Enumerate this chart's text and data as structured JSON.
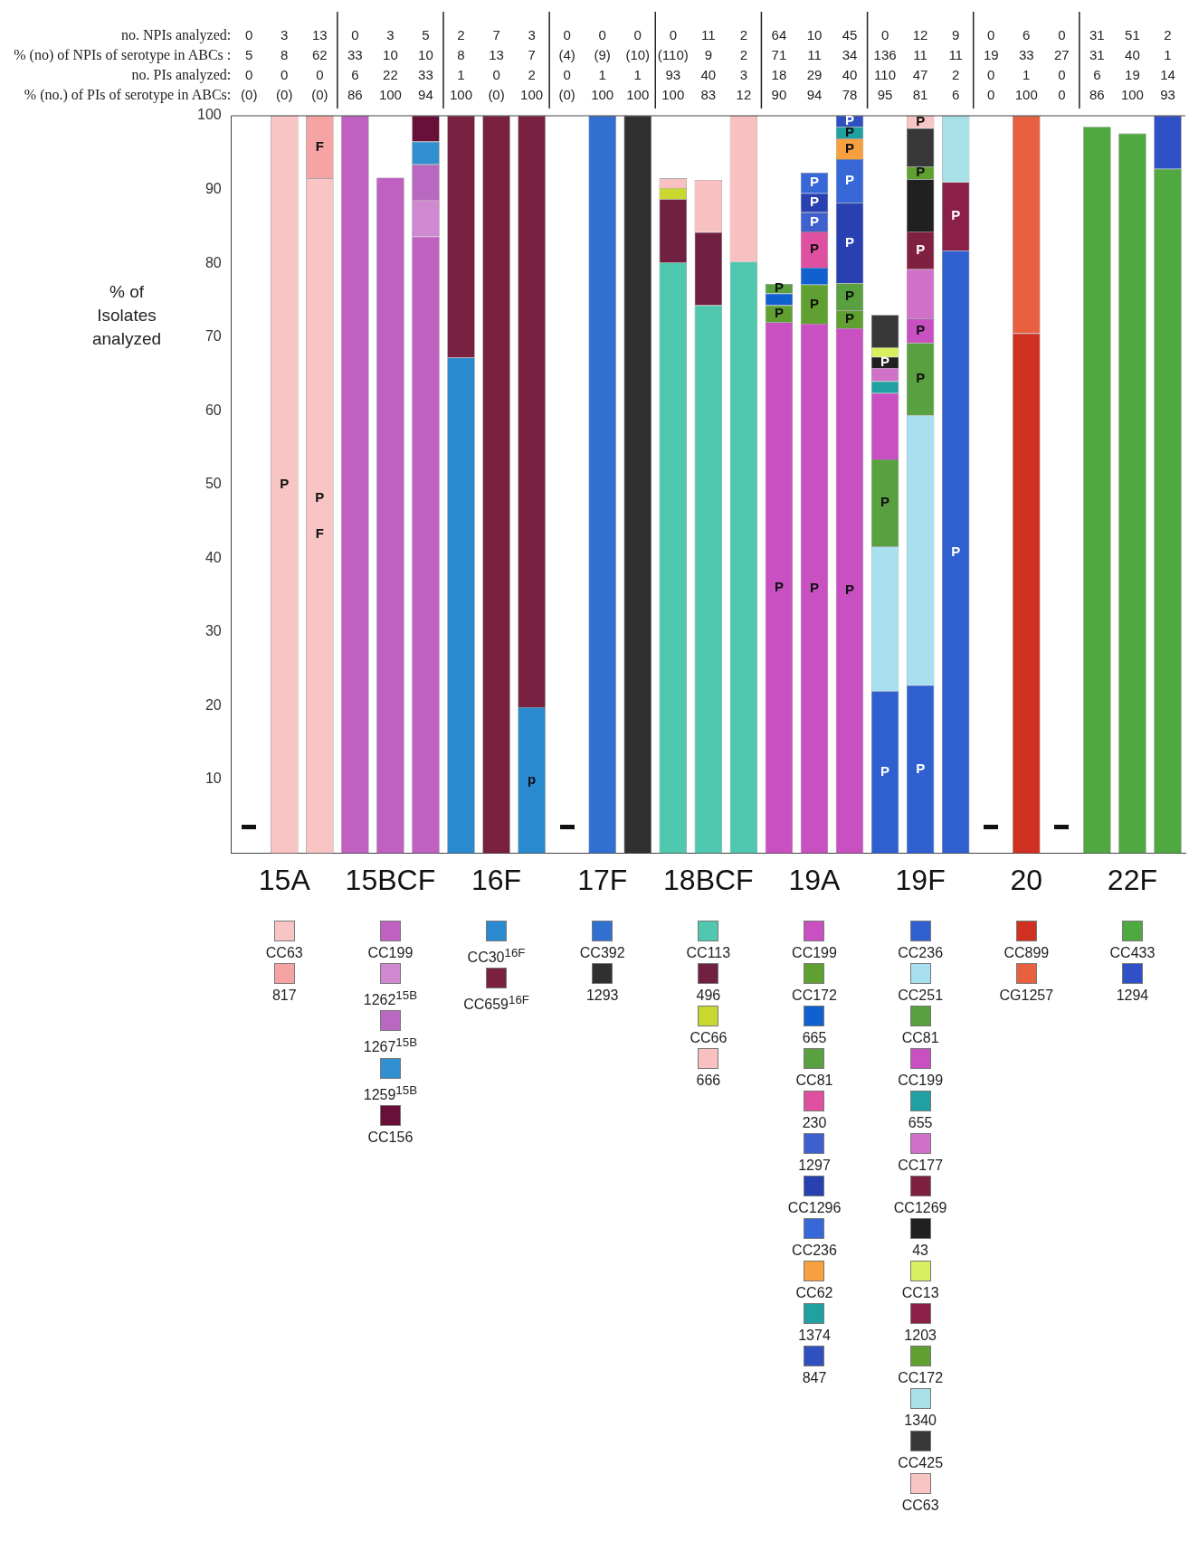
{
  "chart_data": {
    "type": "bar",
    "stacked": true,
    "ylabel": "% of Isolates analyzed",
    "categories": [
      null,
      "15A",
      null,
      null,
      "15BCF",
      null,
      null,
      "16F",
      null,
      null,
      "17F",
      null,
      null,
      "18BCF",
      null,
      null,
      "19A",
      null,
      null,
      "19F",
      null,
      null,
      "20",
      null,
      null,
      "22F",
      null
    ],
    "ylim": [
      0,
      100
    ],
    "yticks": [
      10,
      20,
      30,
      40,
      50,
      60,
      70,
      80,
      90,
      100
    ],
    "grid": false,
    "legend": "bottom",
    "annotations": [
      "no. NPIs analyzed:",
      "% (no) of NPIs of serotype in ABCs :",
      "no. PIs analyzed:",
      "% (no.) of PIs of serotype in ABCs:",
      "0 3 13 0 3 5 2 7 3 0 0 0 0 11 2 64 10 45 0 12 9 0 6 0 31 51 2",
      "5 8 62 33 10 10 8 13 7 (4) (9) (10) (110) 9 2 71 11 34 136 11 11 19 33 27 31 40 1",
      "0 0 0 6 22 33 1 0 2 0 1 1 93 40 3 18 29 40 110 47 2 0 1 0 6 19 14",
      "(0) (0) (0) 86 100 94 100 (0) 100 (0) 100 100 100 83 12 90 94 78 95 81 6 0 100 0 86 100 93"
    ],
    "series": [
      {
        "name": "CC63",
        "color": "#f9c4c4",
        "values": [
          null,
          100,
          91.5,
          null,
          null,
          null,
          null,
          null,
          null,
          null,
          null,
          null,
          null,
          null,
          null,
          null,
          null,
          null,
          null,
          null,
          null,
          null,
          null,
          null,
          null,
          null,
          null
        ],
        "value_labels": [
          null,
          "P",
          "P\nF",
          null,
          null,
          null,
          null,
          null,
          null,
          null,
          null,
          null,
          null,
          null,
          null,
          null,
          null,
          null,
          null,
          null,
          null,
          null,
          null,
          null,
          null,
          null,
          null
        ]
      },
      {
        "name": "817",
        "color": "#f5a3a3",
        "values": [
          null,
          null,
          8.5,
          null,
          null,
          null,
          null,
          null,
          null,
          null,
          null,
          null,
          null,
          null,
          null,
          null,
          null,
          null,
          null,
          null,
          null,
          null,
          null,
          null,
          null,
          null,
          null
        ],
        "value_labels": [
          null,
          null,
          "F",
          null,
          null,
          null,
          null,
          null,
          null,
          null,
          null,
          null,
          null,
          null,
          null,
          null,
          null,
          null,
          null,
          null,
          null,
          null,
          null,
          null,
          null,
          null,
          null
        ]
      },
      {
        "name": "CC199",
        "color": "#c060c0",
        "values": [
          null,
          null,
          null,
          100,
          91.6,
          83.6,
          null,
          null,
          null,
          null,
          null,
          null,
          null,
          null,
          null,
          null,
          null,
          null,
          null,
          null,
          null,
          null,
          null,
          null,
          null,
          null,
          null
        ]
      },
      {
        "name": "1262$^{15B}$",
        "color": "#d088d0",
        "values": [
          null,
          null,
          null,
          null,
          null,
          5.0,
          null,
          null,
          null,
          null,
          null,
          null,
          null,
          null,
          null,
          null,
          null,
          null,
          null,
          null,
          null,
          null,
          null,
          null,
          null,
          null,
          null
        ]
      },
      {
        "name": "1267$^{15B}$",
        "color": "#b868c0",
        "values": [
          null,
          null,
          null,
          null,
          null,
          4.8,
          null,
          null,
          null,
          null,
          null,
          null,
          null,
          null,
          null,
          null,
          null,
          null,
          null,
          null,
          null,
          null,
          null,
          null,
          null,
          null,
          null
        ]
      },
      {
        "name": "1259$^{15B}$",
        "color": "#3090d0",
        "values": [
          null,
          null,
          null,
          null,
          null,
          3.1,
          null,
          null,
          null,
          null,
          null,
          null,
          null,
          null,
          null,
          null,
          null,
          null,
          null,
          null,
          null,
          null,
          null,
          null,
          null,
          null,
          null
        ]
      },
      {
        "name": "CC156",
        "color": "#6a0f3a",
        "values": [
          null,
          null,
          null,
          null,
          null,
          3.5,
          null,
          null,
          null,
          null,
          null,
          null,
          null,
          null,
          null,
          null,
          null,
          null,
          null,
          null,
          null,
          null,
          null,
          null,
          null,
          null,
          null
        ]
      },
      {
        "name": "CC30$^{16F}$",
        "color": "#2a8ad0",
        "values": [
          null,
          null,
          null,
          null,
          null,
          null,
          67.2,
          null,
          19.8,
          null,
          null,
          null,
          null,
          null,
          null,
          null,
          null,
          null,
          null,
          null,
          null,
          null,
          null,
          null,
          null,
          null,
          null
        ],
        "value_labels": [
          null,
          null,
          null,
          null,
          null,
          null,
          null,
          null,
          "p",
          null,
          null,
          null,
          null,
          null,
          null,
          null,
          null,
          null,
          null,
          null,
          null,
          null,
          null,
          null,
          null,
          null,
          null
        ]
      },
      {
        "name": "CC659$^{16F}$",
        "color": "#7a2040",
        "values": [
          null,
          null,
          null,
          null,
          null,
          null,
          32.8,
          100,
          80.2,
          null,
          null,
          null,
          null,
          null,
          null,
          null,
          null,
          null,
          null,
          null,
          null,
          null,
          null,
          null,
          null,
          null,
          null
        ]
      },
      {
        "name": "CC392",
        "color": "#3070d0",
        "values": [
          null,
          null,
          null,
          null,
          null,
          null,
          null,
          null,
          null,
          null,
          100,
          null,
          null,
          null,
          null,
          null,
          null,
          null,
          null,
          null,
          null,
          null,
          null,
          null,
          null,
          null,
          null
        ]
      },
      {
        "name": "1293",
        "color": "#303030",
        "values": [
          null,
          null,
          null,
          null,
          null,
          null,
          null,
          null,
          null,
          null,
          null,
          100,
          null,
          null,
          null,
          null,
          null,
          null,
          null,
          null,
          null,
          null,
          null,
          null,
          null,
          null,
          null
        ]
      },
      {
        "name": "CC113",
        "color": "#50c8b0",
        "values": [
          null,
          null,
          null,
          null,
          null,
          null,
          null,
          null,
          null,
          null,
          null,
          null,
          80.1,
          74.3,
          80.2,
          null,
          null,
          null,
          null,
          null,
          null,
          null,
          null,
          null,
          null,
          null,
          null
        ]
      },
      {
        "name": "496",
        "color": "#702040",
        "values": [
          null,
          null,
          null,
          null,
          null,
          null,
          null,
          null,
          null,
          null,
          null,
          null,
          8.6,
          9.9,
          null,
          null,
          null,
          null,
          null,
          null,
          null,
          null,
          null,
          null,
          null,
          null,
          null
        ]
      },
      {
        "name": "CC66",
        "color": "#c8d830",
        "values": [
          null,
          null,
          null,
          null,
          null,
          null,
          null,
          null,
          null,
          null,
          null,
          null,
          1.5,
          null,
          null,
          null,
          null,
          null,
          null,
          null,
          null,
          null,
          null,
          null,
          null,
          null,
          null
        ]
      },
      {
        "name": "666",
        "color": "#f8c0c0",
        "values": [
          null,
          null,
          null,
          null,
          null,
          null,
          null,
          null,
          null,
          null,
          null,
          null,
          1.3,
          7.1,
          19.8,
          null,
          null,
          null,
          null,
          null,
          null,
          null,
          null,
          null,
          null,
          null,
          null
        ]
      },
      {
        "name": "CC199",
        "color": "#c850c0",
        "values": [
          null,
          null,
          null,
          null,
          null,
          null,
          null,
          null,
          null,
          null,
          null,
          null,
          null,
          null,
          null,
          72.0,
          71.8,
          71.2,
          null,
          null,
          null,
          null,
          null,
          null,
          null,
          null,
          null
        ],
        "value_labels": [
          null,
          null,
          null,
          null,
          null,
          null,
          null,
          null,
          null,
          null,
          null,
          null,
          null,
          null,
          null,
          "P",
          "P",
          "P",
          null,
          null,
          null,
          null,
          null,
          null,
          null,
          null,
          null
        ]
      },
      {
        "name": "CC172",
        "color": "#60a030",
        "values": [
          null,
          null,
          null,
          null,
          null,
          null,
          null,
          null,
          null,
          null,
          null,
          null,
          null,
          null,
          null,
          2.3,
          5.3,
          2.4,
          null,
          null,
          null,
          null,
          null,
          null,
          null,
          null,
          null
        ],
        "value_labels": [
          null,
          null,
          null,
          null,
          null,
          null,
          null,
          null,
          null,
          null,
          null,
          null,
          null,
          null,
          null,
          "P",
          "P",
          "P",
          null,
          null,
          null,
          null,
          null,
          null,
          null,
          null,
          null
        ]
      },
      {
        "name": "665",
        "color": "#1060d0",
        "values": [
          null,
          null,
          null,
          null,
          null,
          null,
          null,
          null,
          null,
          null,
          null,
          null,
          null,
          null,
          null,
          1.6,
          2.3,
          null,
          null,
          null,
          null,
          null,
          null,
          null,
          null,
          null,
          null
        ]
      },
      {
        "name": "CC81",
        "color": "#58a040",
        "values": [
          null,
          null,
          null,
          null,
          null,
          null,
          null,
          null,
          null,
          null,
          null,
          null,
          null,
          null,
          null,
          1.3,
          null,
          3.7,
          null,
          null,
          null,
          null,
          null,
          null,
          null,
          null,
          null
        ],
        "value_labels": [
          null,
          null,
          null,
          null,
          null,
          null,
          null,
          null,
          null,
          null,
          null,
          null,
          null,
          null,
          null,
          "P",
          null,
          "P",
          null,
          null,
          null,
          null,
          null,
          null,
          null,
          null,
          null
        ]
      },
      {
        "name": "230",
        "color": "#e050a0",
        "values": [
          null,
          null,
          null,
          null,
          null,
          null,
          null,
          null,
          null,
          null,
          null,
          null,
          null,
          null,
          null,
          null,
          4.9,
          null,
          null,
          null,
          null,
          null,
          null,
          null,
          null,
          null,
          null
        ],
        "value_labels": [
          null,
          null,
          null,
          null,
          null,
          null,
          null,
          null,
          null,
          null,
          null,
          null,
          null,
          null,
          null,
          null,
          "P",
          null,
          null,
          null,
          null,
          null,
          null,
          null,
          null,
          null,
          null
        ]
      },
      {
        "name": "1297",
        "color": "#4060d0",
        "values": [
          null,
          null,
          null,
          null,
          null,
          null,
          null,
          null,
          null,
          null,
          null,
          null,
          null,
          null,
          null,
          null,
          2.6,
          null,
          null,
          null,
          null,
          null,
          null,
          null,
          null,
          null,
          null
        ],
        "value_labels": [
          null,
          null,
          null,
          null,
          null,
          null,
          null,
          null,
          null,
          null,
          null,
          null,
          null,
          null,
          null,
          null,
          "P",
          null,
          null,
          null,
          null,
          null,
          null,
          null,
          null,
          null,
          null
        ]
      },
      {
        "name": "CC1296",
        "color": "#2840b0",
        "values": [
          null,
          null,
          null,
          null,
          null,
          null,
          null,
          null,
          null,
          null,
          null,
          null,
          null,
          null,
          null,
          null,
          2.6,
          10.9,
          null,
          null,
          null,
          null,
          null,
          null,
          null,
          null,
          null
        ],
        "value_labels": [
          null,
          null,
          null,
          null,
          null,
          null,
          null,
          null,
          null,
          null,
          null,
          null,
          null,
          null,
          null,
          null,
          "P",
          "P",
          null,
          null,
          null,
          null,
          null,
          null,
          null,
          null,
          null
        ]
      },
      {
        "name": "CC236",
        "color": "#3868d8",
        "values": [
          null,
          null,
          null,
          null,
          null,
          null,
          null,
          null,
          null,
          null,
          null,
          null,
          null,
          null,
          null,
          null,
          2.8,
          5.9,
          null,
          null,
          null,
          null,
          null,
          null,
          null,
          null,
          null
        ],
        "value_labels": [
          null,
          null,
          null,
          null,
          null,
          null,
          null,
          null,
          null,
          null,
          null,
          null,
          null,
          null,
          null,
          null,
          "P",
          "P",
          null,
          null,
          null,
          null,
          null,
          null,
          null,
          null,
          null
        ]
      },
      {
        "name": "CC62",
        "color": "#f8a040",
        "values": [
          null,
          null,
          null,
          null,
          null,
          null,
          null,
          null,
          null,
          null,
          null,
          null,
          null,
          null,
          null,
          null,
          null,
          2.8,
          null,
          null,
          null,
          null,
          null,
          null,
          null,
          null,
          null
        ],
        "value_labels": [
          null,
          null,
          null,
          null,
          null,
          null,
          null,
          null,
          null,
          null,
          null,
          null,
          null,
          null,
          null,
          null,
          null,
          "P",
          null,
          null,
          null,
          null,
          null,
          null,
          null,
          null,
          null
        ]
      },
      {
        "name": "1374",
        "color": "#20a0a0",
        "values": [
          null,
          null,
          null,
          null,
          null,
          null,
          null,
          null,
          null,
          null,
          null,
          null,
          null,
          null,
          null,
          null,
          null,
          1.6,
          null,
          null,
          null,
          null,
          null,
          null,
          null,
          null,
          null
        ],
        "value_labels": [
          null,
          null,
          null,
          null,
          null,
          null,
          null,
          null,
          null,
          null,
          null,
          null,
          null,
          null,
          null,
          null,
          null,
          "P",
          null,
          null,
          null,
          null,
          null,
          null,
          null,
          null,
          null
        ]
      },
      {
        "name": "847",
        "color": "#3050c0",
        "values": [
          null,
          null,
          null,
          null,
          null,
          null,
          null,
          null,
          null,
          null,
          null,
          null,
          null,
          null,
          null,
          null,
          null,
          1.5,
          null,
          null,
          null,
          null,
          null,
          null,
          null,
          null,
          null
        ],
        "value_labels": [
          null,
          null,
          null,
          null,
          null,
          null,
          null,
          null,
          null,
          null,
          null,
          null,
          null,
          null,
          null,
          null,
          null,
          "P",
          null,
          null,
          null,
          null,
          null,
          null,
          null,
          null,
          null
        ]
      },
      {
        "name": "CC236",
        "color": "#3060d0",
        "values": [
          null,
          null,
          null,
          null,
          null,
          null,
          null,
          null,
          null,
          null,
          null,
          null,
          null,
          null,
          null,
          null,
          null,
          null,
          22.0,
          22.8,
          81.7,
          null,
          null,
          null,
          null,
          null,
          null
        ],
        "value_labels": [
          null,
          null,
          null,
          null,
          null,
          null,
          null,
          null,
          null,
          null,
          null,
          null,
          null,
          null,
          null,
          null,
          null,
          null,
          "P",
          "P",
          "P",
          null,
          null,
          null,
          null,
          null,
          null
        ]
      },
      {
        "name": "CC251",
        "color": "#a8e0f0",
        "values": [
          null,
          null,
          null,
          null,
          null,
          null,
          null,
          null,
          null,
          null,
          null,
          null,
          null,
          null,
          null,
          null,
          null,
          null,
          19.6,
          36.6,
          null,
          null,
          null,
          null,
          null,
          null,
          null
        ]
      },
      {
        "name": "CC81",
        "color": "#58a040",
        "values": [
          null,
          null,
          null,
          null,
          null,
          null,
          null,
          null,
          null,
          null,
          null,
          null,
          null,
          null,
          null,
          null,
          null,
          null,
          11.8,
          9.8,
          null,
          null,
          null,
          null,
          null,
          null,
          null
        ],
        "value_labels": [
          null,
          null,
          null,
          null,
          null,
          null,
          null,
          null,
          null,
          null,
          null,
          null,
          null,
          null,
          null,
          null,
          null,
          null,
          "P",
          "P",
          null,
          null,
          null,
          null,
          null,
          null,
          null
        ]
      },
      {
        "name": "CC199",
        "color": "#c850c0",
        "values": [
          null,
          null,
          null,
          null,
          null,
          null,
          null,
          null,
          null,
          null,
          null,
          null,
          null,
          null,
          null,
          null,
          null,
          null,
          9.0,
          3.3,
          null,
          null,
          null,
          null,
          null,
          null,
          null
        ],
        "value_labels": [
          null,
          null,
          null,
          null,
          null,
          null,
          null,
          null,
          null,
          null,
          null,
          null,
          null,
          null,
          null,
          null,
          null,
          null,
          null,
          "P",
          null,
          null,
          null,
          null,
          null,
          null,
          null
        ]
      },
      {
        "name": "655",
        "color": "#20a0a0",
        "values": [
          null,
          null,
          null,
          null,
          null,
          null,
          null,
          null,
          null,
          null,
          null,
          null,
          null,
          null,
          null,
          null,
          null,
          null,
          1.6,
          null,
          null,
          null,
          null,
          null,
          null,
          null,
          null
        ]
      },
      {
        "name": "CC177",
        "color": "#d070c8",
        "values": [
          null,
          null,
          null,
          null,
          null,
          null,
          null,
          null,
          null,
          null,
          null,
          null,
          null,
          null,
          null,
          null,
          null,
          null,
          1.8,
          6.7,
          null,
          null,
          null,
          null,
          null,
          null,
          null
        ]
      },
      {
        "name": "CC1269",
        "color": "#802040",
        "values": [
          null,
          null,
          null,
          null,
          null,
          null,
          null,
          null,
          null,
          null,
          null,
          null,
          null,
          null,
          null,
          null,
          null,
          null,
          null,
          5.1,
          null,
          null,
          null,
          null,
          null,
          null,
          null
        ],
        "value_labels": [
          null,
          null,
          null,
          null,
          null,
          null,
          null,
          null,
          null,
          null,
          null,
          null,
          null,
          null,
          null,
          null,
          null,
          null,
          null,
          "P",
          null,
          null,
          null,
          null,
          null,
          null,
          null
        ]
      },
      {
        "name": "43",
        "color": "#202020",
        "values": [
          null,
          null,
          null,
          null,
          null,
          null,
          null,
          null,
          null,
          null,
          null,
          null,
          null,
          null,
          null,
          null,
          null,
          null,
          1.5,
          7.1,
          null,
          null,
          null,
          null,
          null,
          null,
          null
        ],
        "value_labels": [
          null,
          null,
          null,
          null,
          null,
          null,
          null,
          null,
          null,
          null,
          null,
          null,
          null,
          null,
          null,
          null,
          null,
          null,
          "P",
          null,
          null,
          null,
          null,
          null,
          null,
          null,
          null
        ]
      },
      {
        "name": "CC13",
        "color": "#d8f060",
        "values": [
          null,
          null,
          null,
          null,
          null,
          null,
          null,
          null,
          null,
          null,
          null,
          null,
          null,
          null,
          null,
          null,
          null,
          null,
          1.3,
          null,
          null,
          null,
          null,
          null,
          null,
          null,
          null
        ]
      },
      {
        "name": "1203",
        "color": "#8a2048",
        "values": [
          null,
          null,
          null,
          null,
          null,
          null,
          null,
          null,
          null,
          null,
          null,
          null,
          null,
          null,
          null,
          null,
          null,
          null,
          null,
          null,
          9.3,
          null,
          null,
          null,
          null,
          null,
          null
        ],
        "value_labels": [
          null,
          null,
          null,
          null,
          null,
          null,
          null,
          null,
          null,
          null,
          null,
          null,
          null,
          null,
          null,
          null,
          null,
          null,
          null,
          null,
          "P",
          null,
          null,
          null,
          null,
          null,
          null
        ]
      },
      {
        "name": "CC172",
        "color": "#60a030",
        "values": [
          null,
          null,
          null,
          null,
          null,
          null,
          null,
          null,
          null,
          null,
          null,
          null,
          null,
          null,
          null,
          null,
          null,
          null,
          null,
          1.7,
          null,
          null,
          null,
          null,
          null,
          null,
          null
        ],
        "value_labels": [
          null,
          null,
          null,
          null,
          null,
          null,
          null,
          null,
          null,
          null,
          null,
          null,
          null,
          null,
          null,
          null,
          null,
          null,
          null,
          "P",
          null,
          null,
          null,
          null,
          null,
          null,
          null
        ]
      },
      {
        "name": "1340",
        "color": "#a8e0e8",
        "values": [
          null,
          null,
          null,
          null,
          null,
          null,
          null,
          null,
          null,
          null,
          null,
          null,
          null,
          null,
          null,
          null,
          null,
          null,
          null,
          null,
          9.0,
          null,
          null,
          null,
          null,
          null,
          null
        ]
      },
      {
        "name": "CC425",
        "color": "#383838",
        "values": [
          null,
          null,
          null,
          null,
          null,
          null,
          null,
          null,
          null,
          null,
          null,
          null,
          null,
          null,
          null,
          null,
          null,
          null,
          4.4,
          5.2,
          null,
          null,
          null,
          null,
          null,
          null,
          null
        ]
      },
      {
        "name": "CC63",
        "color": "#f9c4c4",
        "values": [
          null,
          null,
          null,
          null,
          null,
          null,
          null,
          null,
          null,
          null,
          null,
          null,
          null,
          null,
          null,
          null,
          null,
          null,
          null,
          1.7,
          null,
          null,
          null,
          null,
          null,
          null,
          null
        ],
        "value_labels": [
          null,
          null,
          null,
          null,
          null,
          null,
          null,
          null,
          null,
          null,
          null,
          null,
          null,
          null,
          null,
          null,
          null,
          null,
          null,
          "P",
          null,
          null,
          null,
          null,
          null,
          null,
          null
        ]
      },
      {
        "name": "CC899",
        "color": "#d03020",
        "values": [
          null,
          null,
          null,
          null,
          null,
          null,
          null,
          null,
          null,
          null,
          null,
          null,
          null,
          null,
          null,
          null,
          null,
          null,
          null,
          null,
          null,
          null,
          70.5,
          null,
          null,
          null,
          null
        ]
      },
      {
        "name": "CG1257",
        "color": "#e86040",
        "values": [
          null,
          null,
          null,
          null,
          null,
          null,
          null,
          null,
          null,
          null,
          null,
          null,
          null,
          null,
          null,
          null,
          null,
          null,
          null,
          null,
          null,
          null,
          29.5,
          null,
          null,
          null,
          null
        ]
      },
      {
        "name": "CC433",
        "color": "#50a840",
        "values": [
          null,
          null,
          null,
          null,
          null,
          null,
          null,
          null,
          null,
          null,
          null,
          null,
          null,
          null,
          null,
          null,
          null,
          null,
          null,
          null,
          null,
          null,
          null,
          null,
          98.5,
          97.6,
          92.8
        ]
      },
      {
        "name": "1294",
        "color": "#3050c8",
        "values": [
          null,
          null,
          null,
          null,
          null,
          null,
          null,
          null,
          null,
          null,
          null,
          null,
          null,
          null,
          null,
          null,
          null,
          null,
          null,
          null,
          null,
          null,
          null,
          null,
          null,
          null,
          7.2
        ]
      }
    ]
  }
}
